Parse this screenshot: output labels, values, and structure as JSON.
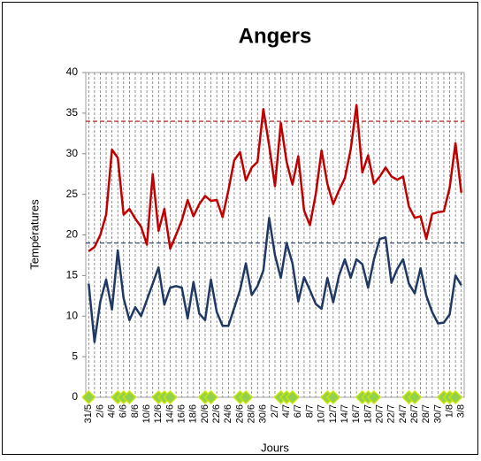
{
  "chart_data": {
    "type": "line",
    "title": "Angers",
    "x_label": "Jours",
    "y_label": "Températures",
    "categories": [
      "31/5",
      null,
      "2/6",
      null,
      "4/6",
      null,
      "6/6",
      null,
      "8/6",
      null,
      "10/6",
      null,
      "12/6",
      null,
      "14/6",
      null,
      "16/6",
      null,
      "18/6",
      null,
      "20/6",
      null,
      "22/6",
      null,
      "24/6",
      null,
      "26/6",
      null,
      "28/6",
      null,
      "30/6",
      null,
      "2/7",
      null,
      "4/7",
      null,
      "6/7",
      null,
      "8/7",
      null,
      "10/7",
      null,
      "12/7",
      null,
      "14/7",
      null,
      "16/7",
      null,
      "18/7",
      null,
      "20/7",
      null,
      "22/7",
      null,
      "24/7",
      null,
      "26/7",
      null,
      "28/7",
      null,
      "30/7",
      null,
      "1/8",
      null,
      "3/8"
    ],
    "series": [
      {
        "color": "#c00000",
        "values": [
          18,
          18.5,
          20,
          22.5,
          30.5,
          29.5,
          22.5,
          23.2,
          22,
          21,
          18.8,
          27.5,
          20.5,
          23.2,
          18.3,
          20,
          21.8,
          24.3,
          22.3,
          23.8,
          24.8,
          24.2,
          24.3,
          22.2,
          25.5,
          29.2,
          30.2,
          26.7,
          28.3,
          29,
          35.5,
          31,
          26,
          33.8,
          29,
          26.2,
          29.7,
          23,
          21.2,
          25,
          30.4,
          26.3,
          23.8,
          25.5,
          27,
          30.5,
          36,
          27.7,
          29.8,
          26.3,
          27.2,
          28.3,
          27.2,
          26.8,
          27.2,
          23.5,
          22.1,
          22.3,
          19.5,
          22.6,
          22.8,
          22.9,
          25.8,
          31.3,
          25.2
        ]
      },
      {
        "color": "#1f3864",
        "values": [
          14,
          6.8,
          11.8,
          14.5,
          10.8,
          18.1,
          12.2,
          9.5,
          11.1,
          10,
          12,
          14,
          16,
          11.4,
          13.5,
          13.7,
          13.5,
          9.7,
          14.2,
          10.3,
          9.5,
          14.5,
          10.5,
          8.8,
          8.8,
          11,
          13.2,
          16.5,
          12.6,
          13.7,
          15.6,
          22.1,
          17.5,
          14.7,
          19,
          16.5,
          11.8,
          14.8,
          13.2,
          11.5,
          10.9,
          14.7,
          11.7,
          15,
          17,
          14.7,
          17,
          16.4,
          13.5,
          17,
          19.5,
          19.7,
          14.1,
          15.8,
          17,
          14,
          12.8,
          15.9,
          12.5,
          10.5,
          9.1,
          9.2,
          10.2,
          15,
          13.8
        ]
      },
      {
        "color": "#92d050",
        "marker": "diamond",
        "line": false,
        "values": [
          0,
          null,
          null,
          null,
          null,
          0,
          0,
          0,
          null,
          null,
          null,
          null,
          0,
          0,
          0,
          null,
          null,
          null,
          null,
          null,
          0,
          0,
          null,
          null,
          null,
          null,
          0,
          0,
          null,
          null,
          null,
          null,
          null,
          0,
          0,
          0,
          null,
          null,
          null,
          null,
          null,
          0,
          0,
          null,
          null,
          null,
          null,
          0,
          0,
          0,
          null,
          null,
          null,
          null,
          null,
          0,
          0,
          null,
          null,
          null,
          null,
          0,
          0,
          0,
          null
        ]
      }
    ],
    "reference_lines": [
      {
        "value": 34,
        "color": "#c00000"
      },
      {
        "value": 19,
        "color": "#1f3864"
      }
    ],
    "ylim": [
      0,
      40
    ],
    "yticks": [
      0,
      5,
      10,
      15,
      20,
      25,
      30,
      35,
      40
    ],
    "grid": "vertical-dashed"
  }
}
